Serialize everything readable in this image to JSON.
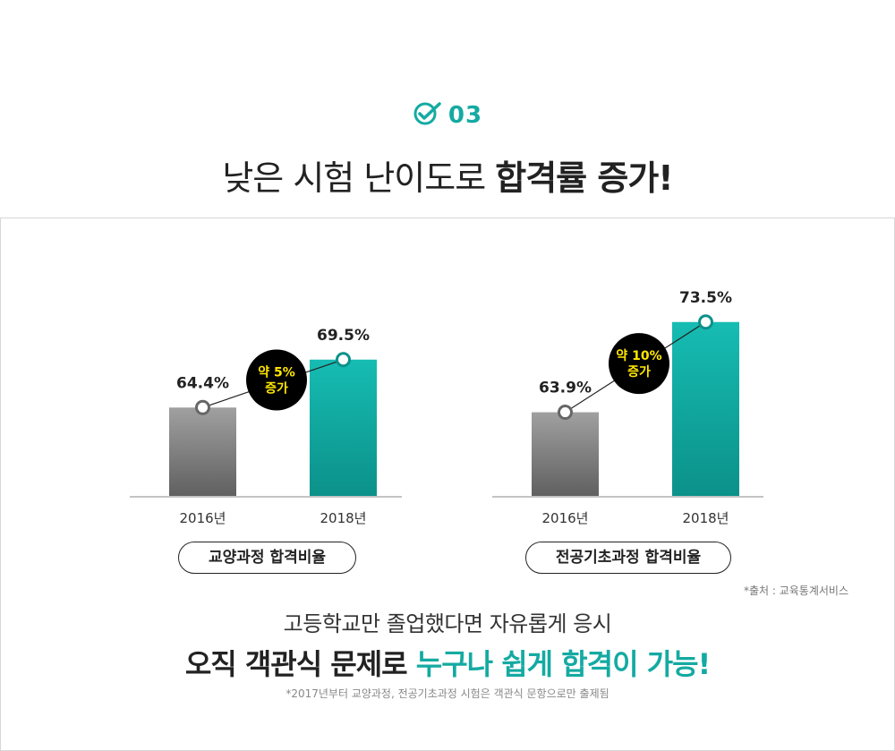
{
  "header": {
    "step_number": "03",
    "headline_light": "낮은 시험 난이도로 ",
    "headline_bold": "합격률 증가!"
  },
  "colors": {
    "accent": "#14aaa2",
    "bar_gray_top": "#a0a0a0",
    "bar_gray_bottom": "#606060",
    "bar_teal_top": "#16bcb2",
    "bar_teal_bottom": "#0b918a",
    "badge_bg": "#000000",
    "badge_text": "#ffe600"
  },
  "chart_data": [
    {
      "type": "bar",
      "categories": [
        "2016년",
        "2018년"
      ],
      "values": [
        64.4,
        69.5
      ],
      "value_labels": [
        "64.4%",
        "69.5%"
      ],
      "badge_lines": [
        "약 5%",
        "증가"
      ],
      "caption": "교양과정 합격비율",
      "ylim": [
        55,
        75
      ]
    },
    {
      "type": "bar",
      "categories": [
        "2016년",
        "2018년"
      ],
      "values": [
        63.9,
        73.5
      ],
      "value_labels": [
        "63.9%",
        "73.5%"
      ],
      "badge_lines": [
        "약 10%",
        "증가"
      ],
      "caption": "전공기초과정 합격비율",
      "ylim": [
        55,
        75
      ]
    }
  ],
  "source_note": "*출처 : 교육통계서비스",
  "bottom": {
    "line1": "고등학교만 졸업했다면 자유롭게 응시",
    "line2_part1": "오직 객관식 문제로 ",
    "line2_accent": "누구나 쉽게 합격이 가능!",
    "footnote": "*2017년부터 교양과정, 전공기초과정 시험은 객관식 문항으로만 출제됨"
  }
}
